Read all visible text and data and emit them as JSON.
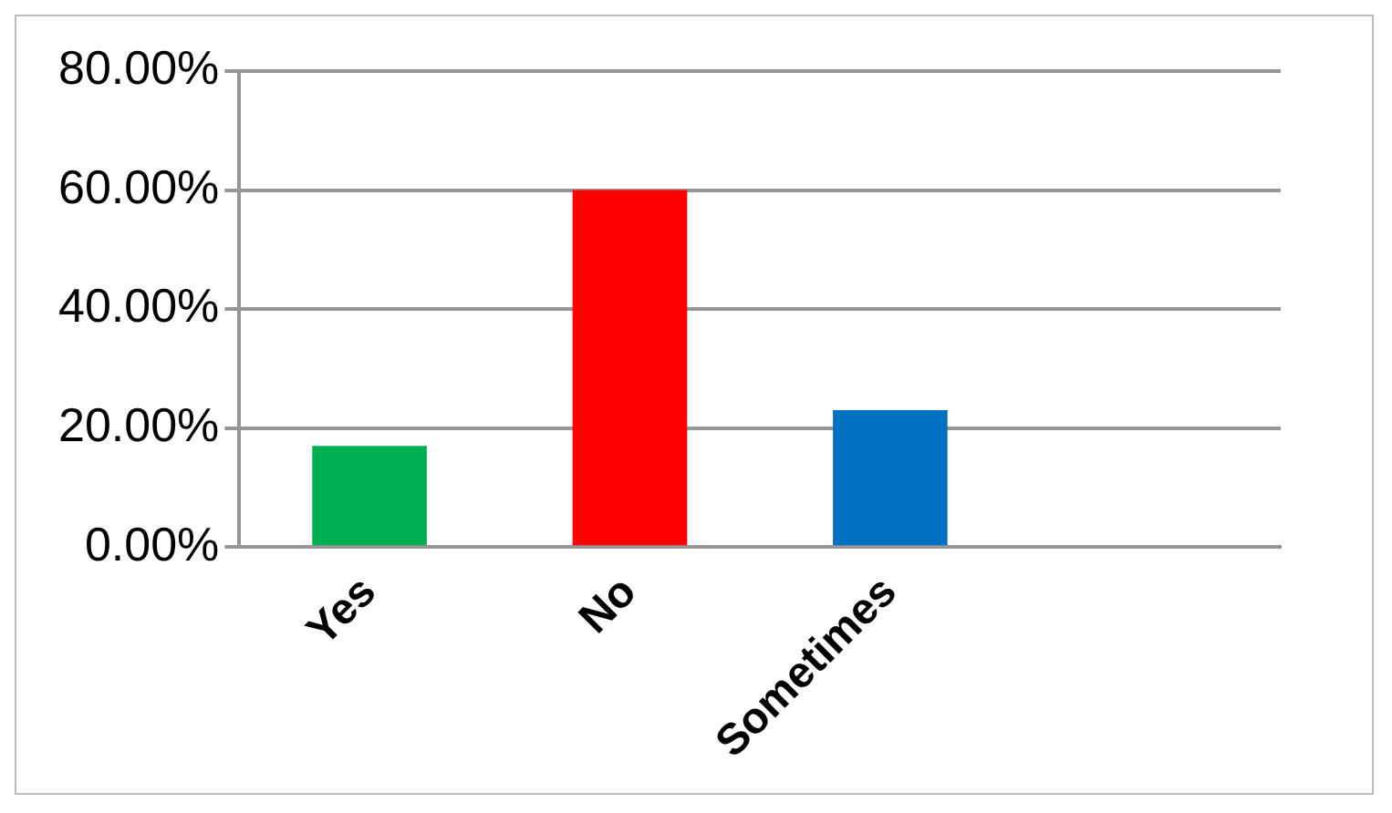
{
  "chart_data": {
    "type": "bar",
    "categories": [
      "Yes",
      "No",
      "Sometimes",
      null
    ],
    "values": [
      17,
      60,
      23,
      null
    ],
    "colors": [
      "#00b050",
      "#ff0000",
      "#0070c0",
      "#000000"
    ],
    "ylim": [
      0,
      80
    ],
    "yticks": [
      {
        "value": 0,
        "label": "0.00%"
      },
      {
        "value": 20,
        "label": "20.00%"
      },
      {
        "value": 40,
        "label": "40.00%"
      },
      {
        "value": 60,
        "label": "60.00%"
      },
      {
        "value": 80,
        "label": "80.00%"
      }
    ],
    "grid": "y",
    "legend": false
  }
}
